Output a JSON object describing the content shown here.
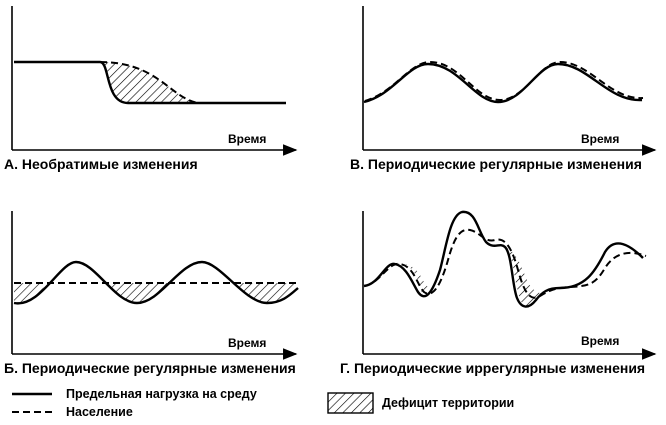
{
  "panels": [
    {
      "id": "A",
      "caption": "А. Необратимые изменения",
      "axis_label": "Время"
    },
    {
      "id": "B",
      "caption": "В. Периодические регулярные изменения",
      "axis_label": "Время"
    },
    {
      "id": "V",
      "caption": "Б. Периодические регулярные изменения",
      "axis_label": "Время"
    },
    {
      "id": "G",
      "caption": "Г. Периодические иррегулярные изменения",
      "axis_label": "Время"
    }
  ],
  "legend": {
    "carrying_capacity": "Предельная нагрузка на среду",
    "population": "Население",
    "deficit": "Дефицит территории"
  },
  "colors": {
    "ink": "#000000",
    "background": "#ffffff"
  }
}
